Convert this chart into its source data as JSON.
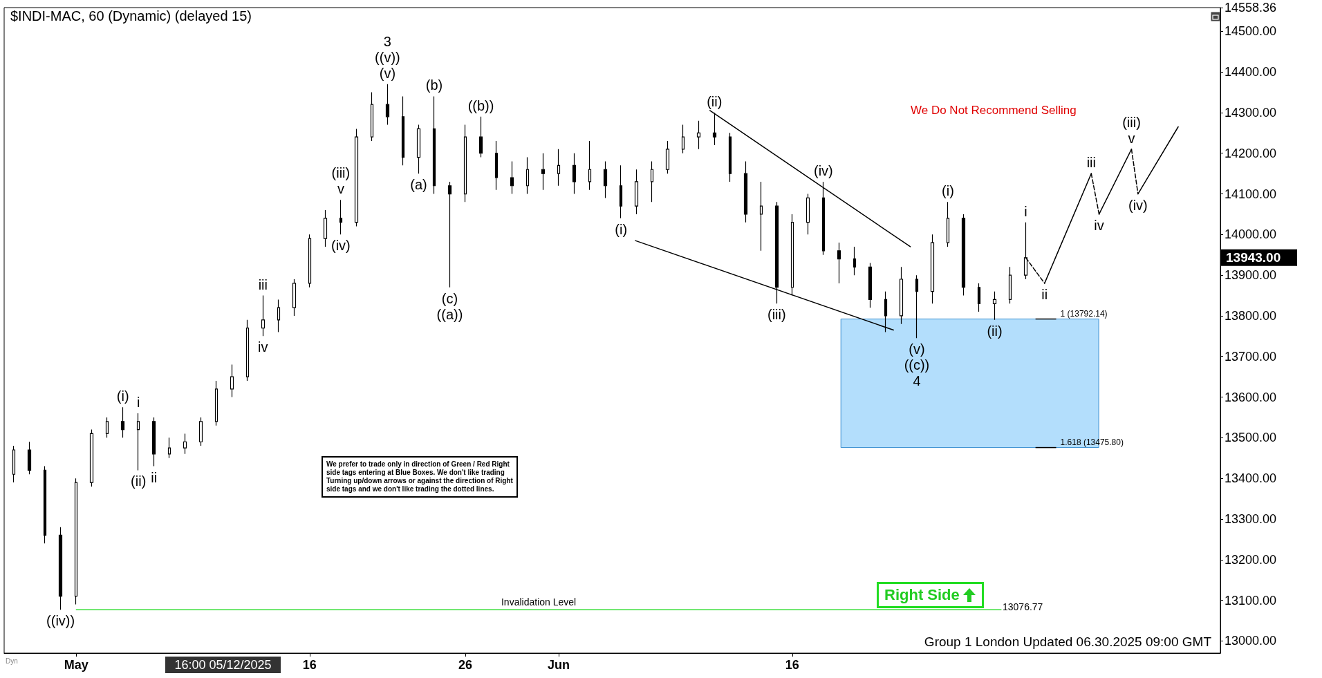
{
  "chart_data": {
    "type": "candlestick",
    "title": "$INDI-MAC, 60 (Dynamic) (delayed 15)",
    "x": [
      "2025-04-27",
      "2025-04-28",
      "2025-04-29",
      "2025-04-30",
      "2025-05-01",
      "2025-05-02",
      "2025-05-03",
      "2025-05-04",
      "2025-05-05",
      "2025-05-06",
      "2025-05-07",
      "2025-05-08",
      "2025-05-09",
      "2025-05-10",
      "2025-05-11",
      "2025-05-12",
      "2025-05-13",
      "2025-05-14",
      "2025-05-15",
      "2025-05-16",
      "2025-05-17",
      "2025-05-18",
      "2025-05-19",
      "2025-05-20",
      "2025-05-21",
      "2025-05-22",
      "2025-05-23",
      "2025-05-24",
      "2025-05-25",
      "2025-05-26",
      "2025-05-27",
      "2025-05-28",
      "2025-05-29",
      "2025-05-30",
      "2025-05-31",
      "2025-06-01",
      "2025-06-02",
      "2025-06-03",
      "2025-06-04",
      "2025-06-05",
      "2025-06-06",
      "2025-06-07",
      "2025-06-08",
      "2025-06-09",
      "2025-06-10",
      "2025-06-11",
      "2025-06-12",
      "2025-06-13",
      "2025-06-14",
      "2025-06-15",
      "2025-06-16",
      "2025-06-17",
      "2025-06-18",
      "2025-06-19",
      "2025-06-20",
      "2025-06-21",
      "2025-06-22",
      "2025-06-23",
      "2025-06-24",
      "2025-06-25",
      "2025-06-26",
      "2025-06-27",
      "2025-06-28",
      "2025-06-29",
      "2025-06-30",
      "2025-07-01"
    ],
    "series": [
      {
        "type": "candlestick",
        "color": "#000000",
        "ohlc": [
          [
            13410,
            13480,
            13390,
            13470
          ],
          [
            13470,
            13490,
            13410,
            13420
          ],
          [
            13420,
            13430,
            13240,
            13260
          ],
          [
            13260,
            13280,
            13076.77,
            13110
          ],
          [
            13110,
            13400,
            13090,
            13390
          ],
          [
            13390,
            13520,
            13380,
            13510
          ],
          [
            13510,
            13550,
            13500,
            13540
          ],
          [
            13540,
            13575,
            13500,
            13520
          ],
          [
            13520,
            13560,
            13420,
            13540
          ],
          [
            13540,
            13550,
            13430,
            13460
          ],
          [
            13460,
            13500,
            13450,
            13475
          ],
          [
            13475,
            13510,
            13460,
            13490
          ],
          [
            13490,
            13550,
            13480,
            13540
          ],
          [
            13540,
            13640,
            13530,
            13620
          ],
          [
            13620,
            13680,
            13600,
            13650
          ],
          [
            13650,
            13790,
            13640,
            13770
          ],
          [
            13770,
            13850,
            13750,
            13790
          ],
          [
            13790,
            13840,
            13760,
            13820
          ],
          [
            13820,
            13890,
            13800,
            13880
          ],
          [
            13880,
            14000,
            13870,
            13990
          ],
          [
            13990,
            14060,
            13970,
            14040
          ],
          [
            14040,
            14085,
            14000,
            14030
          ],
          [
            14030,
            14260,
            14020,
            14240
          ],
          [
            14240,
            14350,
            14230,
            14320
          ],
          [
            14320,
            14370,
            14270,
            14290
          ],
          [
            14290,
            14340,
            14170,
            14190
          ],
          [
            14190,
            14270,
            14150,
            14260
          ],
          [
            14260,
            14340,
            14100,
            14120
          ],
          [
            14120,
            14130,
            13870,
            14100
          ],
          [
            14100,
            14270,
            14080,
            14240
          ],
          [
            14240,
            14290,
            14190,
            14200
          ],
          [
            14200,
            14230,
            14110,
            14140
          ],
          [
            14140,
            14180,
            14100,
            14120
          ],
          [
            14120,
            14190,
            14100,
            14160
          ],
          [
            14160,
            14200,
            14110,
            14150
          ],
          [
            14150,
            14210,
            14120,
            14170
          ],
          [
            14170,
            14200,
            14100,
            14130
          ],
          [
            14130,
            14230,
            14110,
            14160
          ],
          [
            14160,
            14180,
            14090,
            14120
          ],
          [
            14120,
            14170,
            14040,
            14070
          ],
          [
            14070,
            14160,
            14050,
            14130
          ],
          [
            14130,
            14180,
            14080,
            14160
          ],
          [
            14160,
            14230,
            14150,
            14210
          ],
          [
            14210,
            14270,
            14200,
            14240
          ],
          [
            14240,
            14280,
            14210,
            14250
          ],
          [
            14250,
            14300,
            14220,
            14240
          ],
          [
            14240,
            14250,
            14130,
            14150
          ],
          [
            14150,
            14180,
            14030,
            14050
          ],
          [
            14050,
            14130,
            13960,
            14070
          ],
          [
            14070,
            14080,
            13830,
            13870
          ],
          [
            13870,
            14050,
            13850,
            14030
          ],
          [
            14030,
            14100,
            14000,
            14090
          ],
          [
            14090,
            14130,
            13950,
            13960
          ],
          [
            13960,
            13980,
            13880,
            13940
          ],
          [
            13940,
            13970,
            13900,
            13920
          ],
          [
            13920,
            13930,
            13820,
            13840
          ],
          [
            13840,
            13860,
            13760,
            13800
          ],
          [
            13800,
            13920,
            13780,
            13890
          ],
          [
            13890,
            13900,
            13745,
            13860
          ],
          [
            13860,
            14000,
            13830,
            13980
          ],
          [
            13980,
            14080,
            13970,
            14040
          ],
          [
            14040,
            14050,
            13850,
            13870
          ],
          [
            13870,
            13880,
            13810,
            13830
          ],
          [
            13830,
            13860,
            13790,
            13840
          ],
          [
            13840,
            13920,
            13830,
            13900
          ],
          [
            13900,
            14030,
            13890,
            13943
          ]
        ]
      },
      {
        "type": "line",
        "color": "#000000",
        "line_style": "solid",
        "x": [
          "2025-06-10T17:00",
          "2025-06-23T14:00"
        ],
        "values": [
          14305,
          13970
        ]
      },
      {
        "type": "line",
        "color": "#000000",
        "line_style": "solid",
        "x": [
          "2025-06-05T22:00",
          "2025-06-22T12:00"
        ],
        "values": [
          13985,
          13765
        ]
      },
      {
        "type": "line",
        "color": "#000000",
        "line_style": "dashed",
        "x": [
          "2025-07-01T00:00",
          "2025-07-02T05:00"
        ],
        "values": [
          13943,
          13880
        ]
      },
      {
        "type": "line",
        "color": "#000000",
        "line_style": "solid",
        "x": [
          "2025-07-02T05:00",
          "2025-07-05T05:00"
        ],
        "values": [
          13880,
          14150
        ]
      },
      {
        "type": "line",
        "color": "#000000",
        "line_style": "dashed",
        "x": [
          "2025-07-05T05:00",
          "2025-07-05T17:00"
        ],
        "values": [
          14150,
          14050
        ]
      },
      {
        "type": "line",
        "color": "#000000",
        "line_style": "solid",
        "x": [
          "2025-07-05T17:00",
          "2025-07-07T19:00"
        ],
        "values": [
          14050,
          14210
        ]
      },
      {
        "type": "line",
        "color": "#000000",
        "line_style": "dashed",
        "x": [
          "2025-07-07T19:00",
          "2025-07-08T05:00"
        ],
        "values": [
          14210,
          14100
        ]
      },
      {
        "type": "line",
        "color": "#000000",
        "line_style": "solid",
        "x": [
          "2025-07-08T05:00",
          "2025-07-10T19:00"
        ],
        "values": [
          14100,
          14265
        ]
      }
    ],
    "xlim": [
      "2025-04-26T09:00",
      "2025-07-13T12:00"
    ],
    "xticks": [
      {
        "value": "2025-05-01",
        "label": "May"
      },
      {
        "value": "2025-05-16",
        "label": "16"
      },
      {
        "value": "2025-05-26",
        "label": "26"
      },
      {
        "value": "2025-06-01",
        "label": "Jun"
      },
      {
        "value": "2025-06-16",
        "label": "16"
      }
    ],
    "ylim": [
      12970,
      14558.36
    ],
    "yticks": [
      {
        "value": 13000,
        "label": "13000.00"
      },
      {
        "value": 13100,
        "label": "13100.00"
      },
      {
        "value": 13200,
        "label": "13200.00"
      },
      {
        "value": 13300,
        "label": "13300.00"
      },
      {
        "value": 13400,
        "label": "13400.00"
      },
      {
        "value": 13500,
        "label": "13500.00"
      },
      {
        "value": 13600,
        "label": "13600.00"
      },
      {
        "value": 13700,
        "label": "13700.00"
      },
      {
        "value": 13800,
        "label": "13800.00"
      },
      {
        "value": 13900,
        "label": "13900.00"
      },
      {
        "value": 14000,
        "label": "14000.00"
      },
      {
        "value": 14100,
        "label": "14100.00"
      },
      {
        "value": 14200,
        "label": "14200.00"
      },
      {
        "value": 14300,
        "label": "14300.00"
      },
      {
        "value": 14400,
        "label": "14400.00"
      },
      {
        "value": 14500,
        "label": "14500.00"
      },
      14558.36
    ],
    "ref_lines": [
      {
        "axis": "y",
        "value": 13076.77,
        "label": "Invalidation Level",
        "color": "#33dd33"
      },
      {
        "axis": "y",
        "value": 13792.14,
        "label": "1 (13792.14)",
        "color": "#000000"
      },
      {
        "axis": "y",
        "value": 13475.8,
        "label": "1.618 (13475.80)",
        "color": "#000000"
      }
    ],
    "bands": [
      {
        "axis": "y",
        "from": 13475.8,
        "to": 13792.14,
        "color": "#b3defc"
      }
    ],
    "annotations": [
      {
        "text": "((iv))",
        "x": "2025-04-30",
        "y": 13076.77
      },
      {
        "text": "(i)",
        "x": "2025-05-04",
        "y": 13575
      },
      {
        "text": "(ii)",
        "x": "2025-05-05",
        "y": 13420
      },
      {
        "text": "i",
        "x": "2025-05-05",
        "y": 13560
      },
      {
        "text": "ii",
        "x": "2025-05-06",
        "y": 13430
      },
      {
        "text": "iii",
        "x": "2025-05-13",
        "y": 13850
      },
      {
        "text": "iv",
        "x": "2025-05-13",
        "y": 13750
      },
      {
        "text": "v",
        "x": "2025-05-18",
        "y": 14085
      },
      {
        "text": "(iii)",
        "x": "2025-05-18",
        "y": 14085
      },
      {
        "text": "(iv)",
        "x": "2025-05-18",
        "y": 14000
      },
      {
        "text": "(v)",
        "x": "2025-05-21",
        "y": 14370
      },
      {
        "text": "((v))",
        "x": "2025-05-21",
        "y": 14370
      },
      {
        "text": "3",
        "x": "2025-05-21",
        "y": 14370
      },
      {
        "text": "(a)",
        "x": "2025-05-23",
        "y": 14150
      },
      {
        "text": "(b)",
        "x": "2025-05-24",
        "y": 14340
      },
      {
        "text": "(c)",
        "x": "2025-05-25",
        "y": 13870
      },
      {
        "text": "((a))",
        "x": "2025-05-25",
        "y": 13870
      },
      {
        "text": "((b))",
        "x": "2025-05-27",
        "y": 14290
      },
      {
        "text": "(i)",
        "x": "2025-06-05",
        "y": 14040
      },
      {
        "text": "(ii)",
        "x": "2025-06-11",
        "y": 14300
      },
      {
        "text": "(iii)",
        "x": "2025-06-15",
        "y": 13830
      },
      {
        "text": "(iv)",
        "x": "2025-06-18",
        "y": 14130
      },
      {
        "text": "(v)",
        "x": "2025-06-24",
        "y": 13745
      },
      {
        "text": "((c))",
        "x": "2025-06-24",
        "y": 13745
      },
      {
        "text": "4",
        "x": "2025-06-24",
        "y": 13745
      },
      {
        "text": "(i)",
        "x": "2025-06-26",
        "y": 14080
      },
      {
        "text": "(ii)",
        "x": "2025-06-29",
        "y": 13790
      },
      {
        "text": "i",
        "x": "2025-07-01",
        "y": 14030
      },
      {
        "text": "ii",
        "x": "2025-07-02T05:00",
        "y": 13880
      },
      {
        "text": "iii",
        "x": "2025-07-05T05:00",
        "y": 14150
      },
      {
        "text": "iv",
        "x": "2025-07-05T17:00",
        "y": 14050
      },
      {
        "text": "v",
        "x": "2025-07-07T19:00",
        "y": 14210
      },
      {
        "text": "(iii)",
        "x": "2025-07-07T19:00",
        "y": 14210
      },
      {
        "text": "(iv)",
        "x": "2025-07-08T05:00",
        "y": 14100
      },
      "13943.00",
      "13076.77",
      "We Do Not Recommend Selling",
      "We prefer to trade only in direction of Green / Red Right side tags entering at Blue Boxes. We don't like trading Turning up/down arrows or against the direction of Right side tags and we don't like trading the dotted lines.",
      "Right Side",
      "Group 1 London Updated 06.30.2025 09:00 GMT",
      "16:00 05/12/2025",
      "Dyn"
    ]
  }
}
